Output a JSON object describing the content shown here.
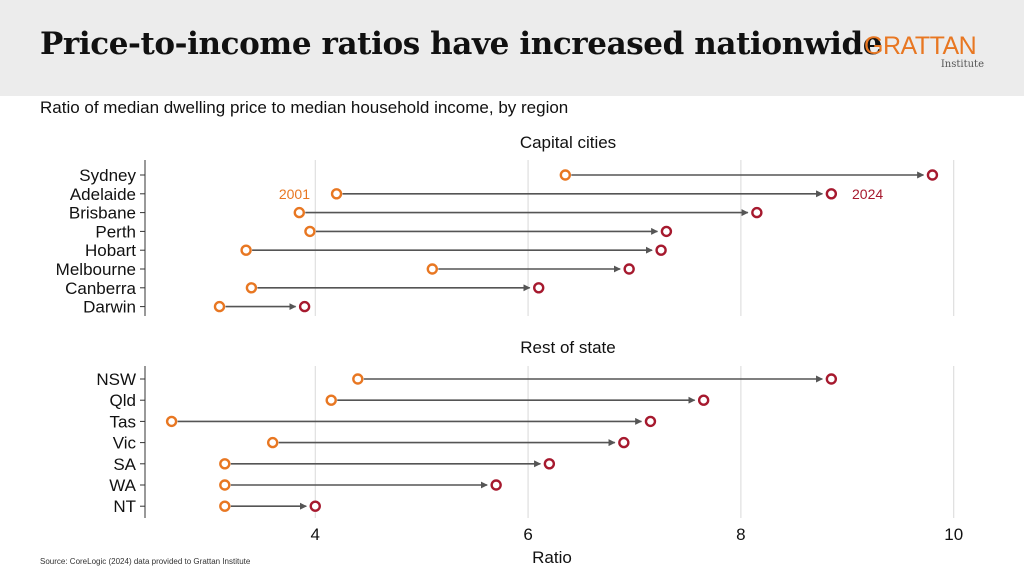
{
  "header": {
    "title": "Price-to-income ratios have increased nationwide",
    "logo_main": "GRATTAN",
    "logo_sub": "Institute"
  },
  "subtitle": "Ratio of median dwelling price to median household income, by region",
  "source": "Source: CoreLogic (2024) data provided to Grattan Institute",
  "colors": {
    "start": "#e87722",
    "end": "#a6192e",
    "arrow": "#555555",
    "grid": "#d9d9d9"
  },
  "chart_data": {
    "type": "dumbbell",
    "xlabel": "Ratio",
    "xlim": [
      2.4,
      10.2
    ],
    "xticks": [
      4,
      6,
      8,
      10
    ],
    "grid": true,
    "series_labels": {
      "start": "2001",
      "end": "2024"
    },
    "panels": [
      {
        "title": "Capital cities",
        "rows": [
          {
            "label": "Sydney",
            "start": 6.35,
            "end": 9.8
          },
          {
            "label": "Adelaide",
            "start": 4.2,
            "end": 8.85
          },
          {
            "label": "Brisbane",
            "start": 3.85,
            "end": 8.15
          },
          {
            "label": "Perth",
            "start": 3.95,
            "end": 7.3
          },
          {
            "label": "Hobart",
            "start": 3.35,
            "end": 7.25
          },
          {
            "label": "Melbourne",
            "start": 5.1,
            "end": 6.95
          },
          {
            "label": "Canberra",
            "start": 3.4,
            "end": 6.1
          },
          {
            "label": "Darwin",
            "start": 3.1,
            "end": 3.9
          }
        ]
      },
      {
        "title": "Rest of state",
        "rows": [
          {
            "label": "NSW",
            "start": 4.4,
            "end": 8.85
          },
          {
            "label": "Qld",
            "start": 4.15,
            "end": 7.65
          },
          {
            "label": "Tas",
            "start": 2.65,
            "end": 7.15
          },
          {
            "label": "Vic",
            "start": 3.6,
            "end": 6.9
          },
          {
            "label": "SA",
            "start": 3.15,
            "end": 6.2
          },
          {
            "label": "WA",
            "start": 3.15,
            "end": 5.7
          },
          {
            "label": "NT",
            "start": 3.15,
            "end": 4.0
          }
        ]
      }
    ]
  }
}
